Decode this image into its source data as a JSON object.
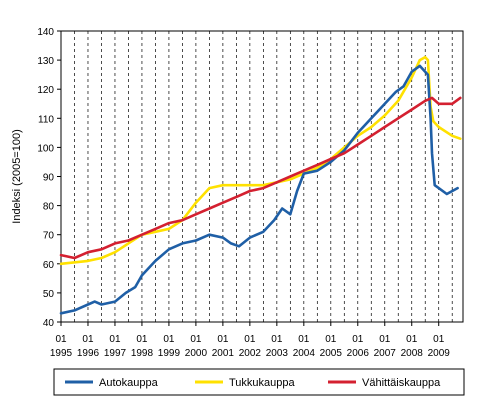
{
  "chart_data": {
    "type": "line",
    "title": "",
    "xlabel": "",
    "ylabel": "Indeksi (2005=100)",
    "ylim": [
      40,
      140
    ],
    "yticks": [
      40,
      50,
      60,
      70,
      80,
      90,
      100,
      110,
      120,
      130,
      140
    ],
    "x_tick_month": "01",
    "x_tick_years": [
      "1995",
      "1996",
      "1997",
      "1998",
      "1999",
      "2000",
      "2001",
      "2002",
      "2003",
      "2004",
      "2005",
      "2006",
      "2007",
      "2008",
      "2009"
    ],
    "grid": "vertical dashed lines at each year",
    "legend_position": "bottom",
    "colors": {
      "Autokauppa": "#1f5fa6",
      "Tukkukauppa": "#ffe100",
      "Vähittäiskauppa": "#d42030"
    },
    "series": [
      {
        "name": "Autokauppa",
        "x": [
          1995.0,
          1995.5,
          1996.0,
          1996.25,
          1996.5,
          1997.0,
          1997.4,
          1997.75,
          1998.0,
          1998.5,
          1999.0,
          1999.5,
          2000.0,
          2000.5,
          2001.0,
          2001.3,
          2001.6,
          2002.0,
          2002.5,
          2002.9,
          2003.2,
          2003.5,
          2003.75,
          2004.0,
          2004.5,
          2005.0,
          2005.5,
          2006.0,
          2006.5,
          2007.0,
          2007.4,
          2007.7,
          2008.0,
          2008.3,
          2008.6,
          2008.7,
          2008.75,
          2008.85,
          2009.0,
          2009.3,
          2009.7
        ],
        "values": [
          43,
          44,
          46,
          47,
          46,
          47,
          50,
          52,
          56,
          61,
          65,
          67,
          68,
          70,
          69,
          67,
          66,
          69,
          71,
          75,
          79,
          77,
          85,
          91,
          92,
          95,
          99,
          105,
          110,
          115,
          119,
          121,
          126,
          128,
          125,
          110,
          98,
          87,
          86,
          84,
          86
        ]
      },
      {
        "name": "Tukkukauppa",
        "x": [
          1995.0,
          1996.0,
          1996.5,
          1997.0,
          1997.5,
          1998.0,
          1998.5,
          1999.0,
          1999.5,
          2000.0,
          2000.5,
          2001.0,
          2001.5,
          2002.0,
          2002.5,
          2003.0,
          2003.5,
          2004.0,
          2004.5,
          2005.0,
          2005.5,
          2006.0,
          2006.5,
          2007.0,
          2007.5,
          2008.0,
          2008.3,
          2008.5,
          2008.6,
          2008.7,
          2008.8,
          2009.0,
          2009.5,
          2009.8
        ],
        "values": [
          60,
          61,
          62,
          64,
          67,
          70,
          71,
          72,
          75,
          81,
          86,
          87,
          87,
          87,
          87,
          88,
          89,
          91,
          93,
          96,
          100,
          104,
          107,
          111,
          116,
          124,
          130,
          131,
          130,
          114,
          109,
          107,
          104,
          103
        ]
      },
      {
        "name": "Vähittäiskauppa",
        "x": [
          1995.0,
          1995.5,
          1996.0,
          1996.5,
          1997.0,
          1997.5,
          1998.0,
          1998.5,
          1999.0,
          1999.5,
          2000.0,
          2000.5,
          2001.0,
          2001.5,
          2002.0,
          2002.5,
          2003.0,
          2003.5,
          2004.0,
          2004.5,
          2005.0,
          2005.5,
          2006.0,
          2006.5,
          2007.0,
          2007.5,
          2008.0,
          2008.5,
          2008.75,
          2009.0,
          2009.5,
          2009.8
        ],
        "values": [
          63,
          62,
          64,
          65,
          67,
          68,
          70,
          72,
          74,
          75,
          77,
          79,
          81,
          83,
          85,
          86,
          88,
          90,
          92,
          94,
          96,
          98,
          101,
          104,
          107,
          110,
          113,
          116,
          117,
          115,
          115,
          117
        ]
      }
    ]
  }
}
